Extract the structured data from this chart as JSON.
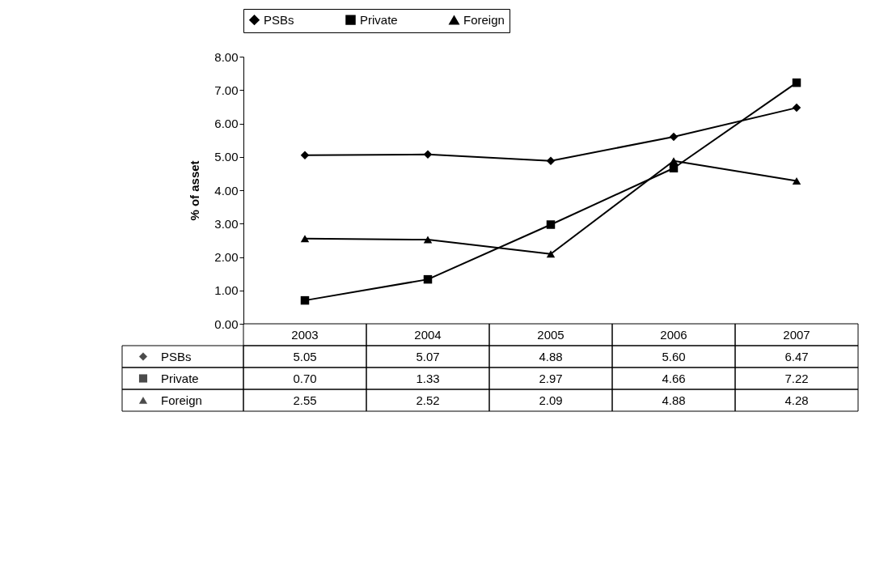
{
  "chart_data": {
    "type": "line",
    "ylabel": "% of asset",
    "categories": [
      "2003",
      "2004",
      "2005",
      "2006",
      "2007"
    ],
    "ylim": [
      0,
      8
    ],
    "yticks": [
      {
        "value": 0,
        "label": "0.00"
      },
      {
        "value": 1,
        "label": "1.00"
      },
      {
        "value": 2,
        "label": "2.00"
      },
      {
        "value": 3,
        "label": "3.00"
      },
      {
        "value": 4,
        "label": "4.00"
      },
      {
        "value": 5,
        "label": "5.00"
      },
      {
        "value": 6,
        "label": "6.00"
      },
      {
        "value": 7,
        "label": "7.00"
      },
      {
        "value": 8,
        "label": "8.00"
      }
    ],
    "legend": "top",
    "grid": false,
    "line_style": "solid",
    "series": [
      {
        "name": "PSBs",
        "color": "#000000",
        "marker": "diamond",
        "values": [
          5.05,
          5.07,
          4.88,
          5.6,
          6.47
        ],
        "value_labels": [
          "5.05",
          "5.07",
          "4.88",
          "5.60",
          "6.47"
        ]
      },
      {
        "name": "Private",
        "color": "#000000",
        "marker": "square",
        "values": [
          0.7,
          1.33,
          2.97,
          4.66,
          7.22
        ],
        "value_labels": [
          "0.70",
          "1.33",
          "2.97",
          "4.66",
          "7.22"
        ]
      },
      {
        "name": "Foreign",
        "color": "#000000",
        "marker": "triangle",
        "values": [
          2.55,
          2.52,
          2.09,
          4.88,
          4.28
        ],
        "value_labels": [
          "2.55",
          "2.52",
          "2.09",
          "4.88",
          "4.28"
        ]
      }
    ]
  }
}
